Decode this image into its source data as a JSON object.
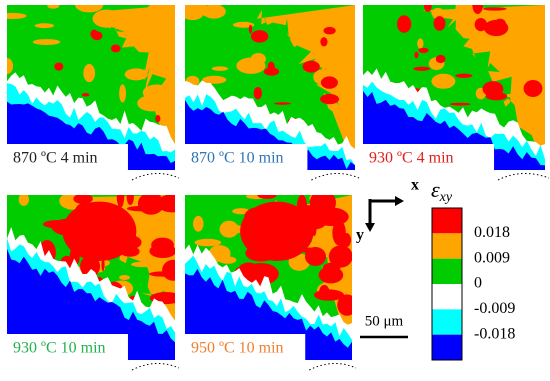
{
  "panels": [
    {
      "label": "870 ºC 4 min",
      "label_color": "#222222"
    },
    {
      "label": "870 ºC 10 min",
      "label_color": "#2e75b6"
    },
    {
      "label": "930 ºC 4 min",
      "label_color": "#e0201b"
    },
    {
      "label": "930 ºC 10 min",
      "label_color": "#22b14c"
    },
    {
      "label": "950 ºC 10 min",
      "label_color": "#f07f30"
    }
  ],
  "axes": {
    "x": "x",
    "y": "y"
  },
  "scale_bar": "50 μm",
  "colorbar": {
    "title": "ε",
    "title_sub": "xy",
    "labels": [
      "0.018",
      "0.009",
      "0",
      "-0.009",
      "-0.018"
    ],
    "colors": [
      "#ff0000",
      "#ffa500",
      "#00cc00",
      "#ffffff",
      "#00ffff",
      "#0000ff"
    ]
  }
}
